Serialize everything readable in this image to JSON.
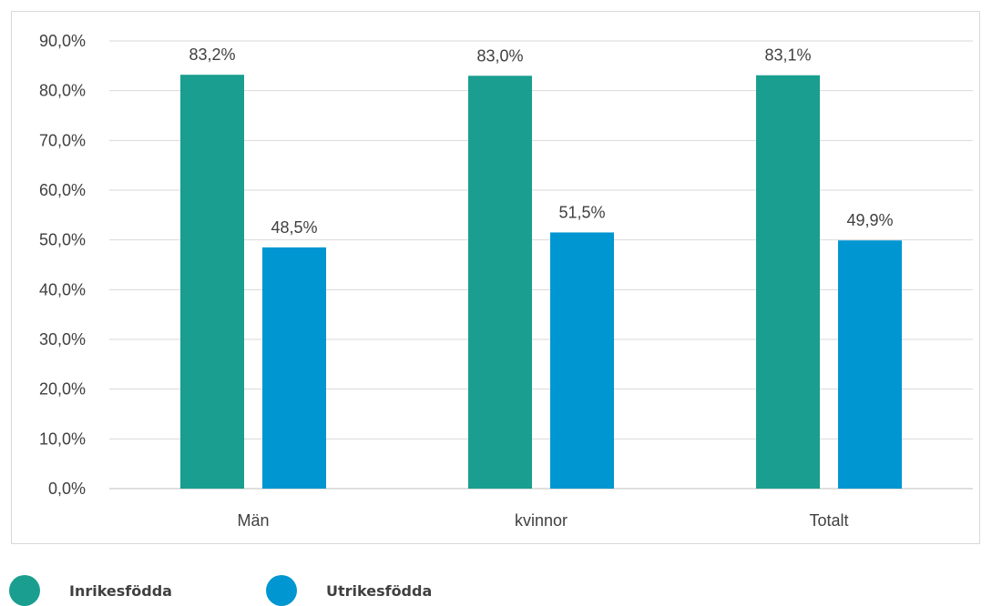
{
  "chart_data": {
    "type": "bar",
    "categories": [
      "Män",
      "kvinnor",
      "Totalt"
    ],
    "series": [
      {
        "name": "Inrikesfödda",
        "values": [
          83.2,
          83.0,
          83.1
        ],
        "labels": [
          "83,2%",
          "83,0%",
          "83,1%"
        ],
        "color": "#1a9e8f"
      },
      {
        "name": "Utrikesfödda",
        "values": [
          48.5,
          51.5,
          49.9
        ],
        "labels": [
          "48,5%",
          "51,5%",
          "49,9%"
        ],
        "color": "#0096d1"
      }
    ],
    "yticks": [
      "0,0%",
      "10,0%",
      "20,0%",
      "30,0%",
      "40,0%",
      "50,0%",
      "60,0%",
      "70,0%",
      "80,0%",
      "90,0%"
    ],
    "ylim": [
      0,
      90
    ],
    "title": "",
    "xlabel": "",
    "ylabel": "",
    "grid": true,
    "legend_position": "bottom-left"
  }
}
